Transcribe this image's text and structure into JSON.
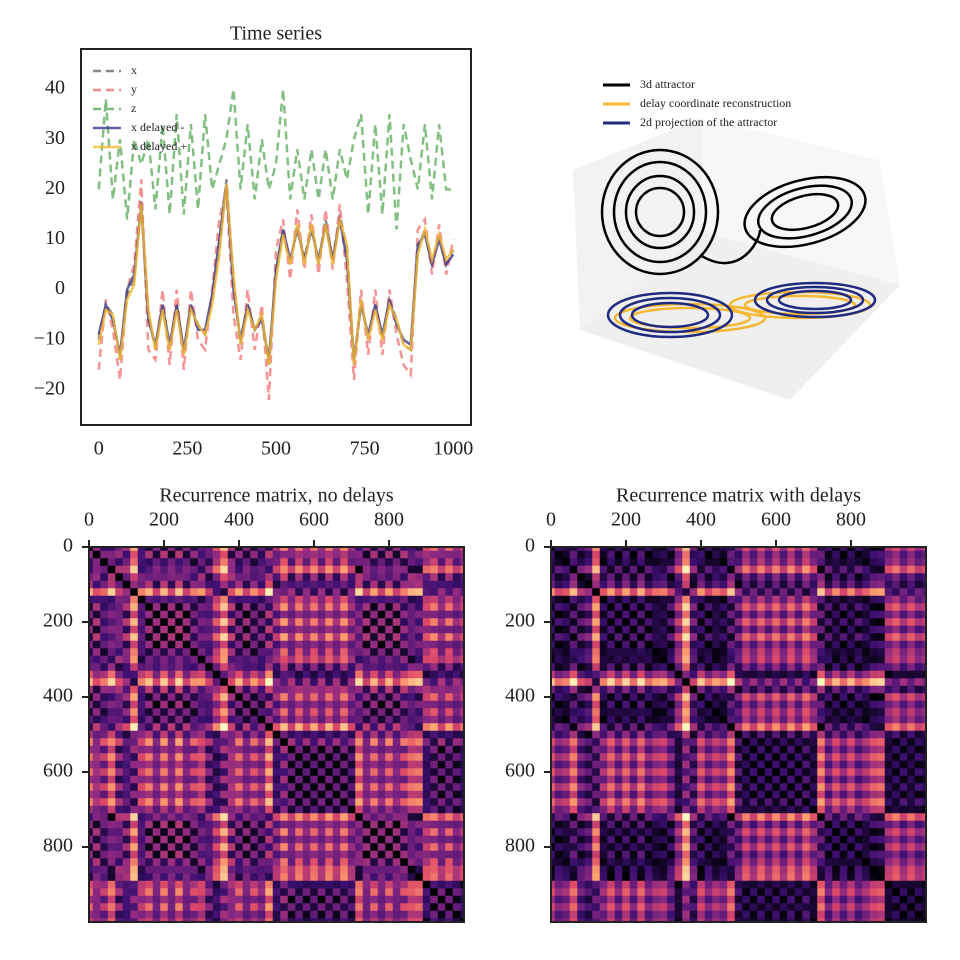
{
  "chart_data": [
    {
      "type": "line",
      "title": "Time series",
      "x": [
        0,
        20,
        40,
        60,
        80,
        100,
        120,
        140,
        160,
        180,
        200,
        220,
        240,
        260,
        280,
        300,
        320,
        340,
        360,
        380,
        400,
        420,
        440,
        460,
        480,
        500,
        520,
        540,
        560,
        580,
        600,
        620,
        640,
        660,
        680,
        700,
        720,
        740,
        760,
        780,
        800,
        820,
        840,
        860,
        880,
        900,
        920,
        940,
        960,
        980,
        1000
      ],
      "series": [
        {
          "name": "x",
          "color": "#666666",
          "dash": true,
          "values": [
            -10,
            -3,
            -5,
            -14,
            -1,
            2,
            18,
            -5,
            -12,
            -3,
            -12,
            -3,
            -13,
            -3,
            -7,
            -9,
            -2,
            8,
            22,
            2,
            -11,
            -3,
            -8,
            -5,
            -15,
            3,
            12,
            5,
            13,
            6,
            13,
            5,
            14,
            6,
            15,
            8,
            -15,
            -2,
            -10,
            -3,
            -10,
            -2,
            -6,
            -11,
            -12,
            8,
            12,
            5,
            11,
            5,
            8
          ]
        },
        {
          "name": "y",
          "color": "#f07070",
          "dash": true,
          "values": [
            -16,
            -2,
            -8,
            -18,
            0,
            5,
            22,
            -12,
            -14,
            0,
            -15,
            0,
            -16,
            0,
            -10,
            -12,
            0,
            14,
            20,
            -5,
            -14,
            0,
            -12,
            -3,
            -22,
            8,
            14,
            2,
            16,
            4,
            15,
            3,
            16,
            4,
            17,
            2,
            -18,
            0,
            -13,
            0,
            -13,
            0,
            -9,
            -15,
            -17,
            12,
            14,
            3,
            13,
            3,
            10
          ]
        },
        {
          "name": "z",
          "color": "#5aaa5a",
          "dash": true,
          "values": [
            20,
            38,
            18,
            30,
            14,
            30,
            25,
            30,
            16,
            33,
            15,
            35,
            15,
            33,
            16,
            35,
            20,
            25,
            30,
            40,
            20,
            33,
            18,
            30,
            20,
            25,
            40,
            18,
            28,
            18,
            28,
            18,
            28,
            18,
            28,
            22,
            30,
            35,
            15,
            33,
            15,
            35,
            12,
            33,
            26,
            20,
            33,
            18,
            33,
            20,
            20
          ]
        },
        {
          "name": "x delayed -",
          "color": "#3b3b8c",
          "dash": false,
          "values": [
            -9,
            -3,
            -6,
            -13,
            0,
            3,
            17,
            -6,
            -11,
            -3,
            -11,
            -3,
            -12,
            -3,
            -8,
            -8,
            -1,
            10,
            21,
            0,
            -10,
            -3,
            -8,
            -6,
            -14,
            4,
            12,
            6,
            12,
            6,
            12,
            6,
            13,
            6,
            14,
            6,
            -14,
            -3,
            -9,
            -3,
            -9,
            -2,
            -7,
            -10,
            -11,
            9,
            11,
            5,
            10,
            5,
            7
          ]
        },
        {
          "name": "x delayed +",
          "color": "#f5b830",
          "dash": false,
          "values": [
            -11,
            -4,
            -5,
            -14,
            -2,
            1,
            17,
            -4,
            -12,
            -4,
            -12,
            -4,
            -13,
            -4,
            -7,
            -9,
            -3,
            7,
            21,
            3,
            -11,
            -4,
            -8,
            -5,
            -15,
            2,
            11,
            5,
            13,
            5,
            13,
            5,
            13,
            5,
            14,
            9,
            -15,
            -2,
            -10,
            -4,
            -10,
            -3,
            -6,
            -11,
            -12,
            7,
            12,
            6,
            11,
            6,
            8
          ]
        }
      ],
      "xlim": [
        -50,
        1050
      ],
      "ylim": [
        -27,
        48
      ],
      "xticks": [
        0,
        250,
        500,
        750,
        1000
      ],
      "yticks": [
        {
          "value": -20,
          "label": "−20"
        },
        {
          "value": -10,
          "label": "−10"
        },
        0,
        10,
        20,
        30,
        40
      ]
    },
    {
      "type": "attractor3d",
      "series": [
        {
          "name": "3d attractor",
          "color": "#000000"
        },
        {
          "name": "delay coordinate reconstruction",
          "color": "#f5b830"
        },
        {
          "name": "2d projection of the attractor",
          "color": "#1f2a80"
        }
      ]
    },
    {
      "type": "heatmap",
      "title": "Recurrence matrix, no delays",
      "xlim": [
        0,
        1000
      ],
      "ylim": [
        1000,
        0
      ],
      "xticks": [
        0,
        200,
        400,
        600,
        800
      ],
      "yticks": [
        0,
        200,
        400,
        600,
        800
      ]
    },
    {
      "type": "heatmap",
      "title": "Recurrence matrix with delays",
      "xlim": [
        0,
        1000
      ],
      "ylim": [
        1000,
        0
      ],
      "xticks": [
        0,
        200,
        400,
        600,
        800
      ],
      "yticks": [
        0,
        200,
        400,
        600,
        800
      ]
    }
  ]
}
